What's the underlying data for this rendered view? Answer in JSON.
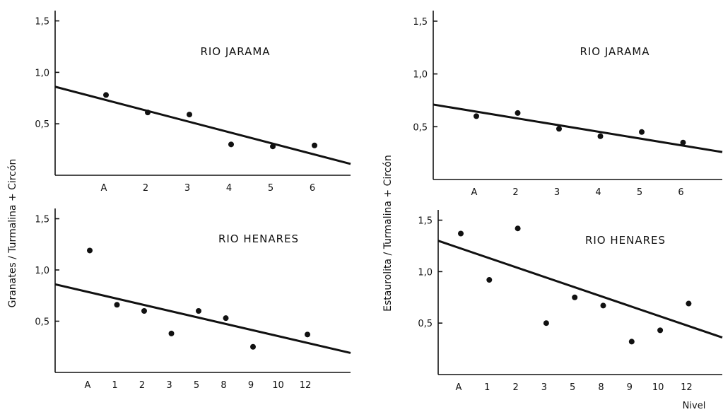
{
  "y_labels": {
    "left": "Granates / Turmalina + Circón",
    "right": "Estaurolita / Turmalina + Circón"
  },
  "chart_data": [
    {
      "id": "tl",
      "type": "scatter",
      "title": "RIO JARAMA",
      "xlabel": "",
      "ylabel": "Granates / Turmalina + Circón",
      "categories": [
        "A",
        "2",
        "3",
        "4",
        "5",
        "6"
      ],
      "y_ticks": [
        "0,5",
        "1,0",
        "1,5"
      ],
      "ylim": [
        0,
        1.6
      ],
      "series": [
        {
          "values": [
            0.78,
            0.61,
            0.59,
            0.3,
            0.28,
            0.29
          ]
        }
      ],
      "trend": {
        "y_at_axis_start": 0.86,
        "y_at_axis_end": 0.11
      }
    },
    {
      "id": "tr",
      "type": "scatter",
      "title": "RIO JARAMA",
      "xlabel": "",
      "ylabel": "Estaurolita / Turmalina + Circón",
      "categories": [
        "A",
        "2",
        "3",
        "4",
        "5",
        "6"
      ],
      "y_ticks": [
        "0,5",
        "1,0",
        "1,5"
      ],
      "ylim": [
        0,
        1.6
      ],
      "series": [
        {
          "values": [
            0.6,
            0.63,
            0.48,
            0.41,
            0.45,
            0.35
          ]
        }
      ],
      "trend": {
        "y_at_axis_start": 0.71,
        "y_at_axis_end": 0.26
      }
    },
    {
      "id": "bl",
      "type": "scatter",
      "title": "RIO HENARES",
      "xlabel": "",
      "ylabel": "Granates / Turmalina + Circón",
      "categories": [
        "A",
        "1",
        "2",
        "3",
        "5",
        "8",
        "9",
        "10",
        "12"
      ],
      "y_ticks": [
        "0,5",
        "1,0",
        "1,5"
      ],
      "ylim": [
        0,
        1.6
      ],
      "series": [
        {
          "values": [
            1.19,
            0.66,
            0.6,
            0.38,
            0.6,
            0.53,
            0.25,
            null,
            0.37
          ]
        }
      ],
      "trend": {
        "y_at_axis_start": 0.86,
        "y_at_axis_end": 0.19
      }
    },
    {
      "id": "br",
      "type": "scatter",
      "title": "RIO HENARES",
      "xlabel": "Nivel",
      "ylabel": "Estaurolita / Turmalina + Circón",
      "categories": [
        "A",
        "1",
        "2",
        "3",
        "5",
        "8",
        "9",
        "10",
        "12"
      ],
      "y_ticks": [
        "0,5",
        "1,0",
        "1,5"
      ],
      "ylim": [
        0,
        1.6
      ],
      "series": [
        {
          "values": [
            1.37,
            0.92,
            1.42,
            0.5,
            0.75,
            0.67,
            0.32,
            0.43,
            0.69
          ]
        }
      ],
      "trend": {
        "y_at_axis_start": 1.3,
        "y_at_axis_end": 0.36
      }
    }
  ]
}
